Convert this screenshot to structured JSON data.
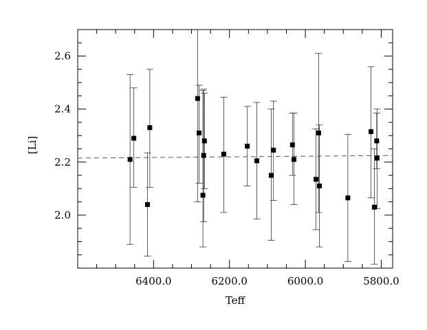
{
  "chart_data": {
    "type": "scatter",
    "title": "",
    "xlabel": "Teff",
    "ylabel": "[Li]",
    "x_reversed": true,
    "xlim": [
      6600,
      5770
    ],
    "ylim": [
      1.8,
      2.7
    ],
    "x_ticks": [
      6400,
      6200,
      6000,
      5800
    ],
    "x_tick_labels": [
      "6400.0",
      "6200.0",
      "6000.0",
      "5800.0"
    ],
    "y_ticks": [
      2.0,
      2.2,
      2.4,
      2.6
    ],
    "y_tick_labels": [
      "2.0",
      "2.2",
      "2.4",
      "2.6"
    ],
    "x_minor_step": 50,
    "y_minor_step": 0.05,
    "grid": false,
    "legend": "none",
    "reference_line": {
      "style": "dashed",
      "y_at_xmin": 2.215,
      "y_at_xmax": 2.225
    },
    "points": [
      {
        "x": 6462,
        "y": 2.21,
        "err_low": 1.89,
        "err_high": 2.53
      },
      {
        "x": 6452,
        "y": 2.29,
        "err_low": 2.105,
        "err_high": 2.48
      },
      {
        "x": 6416,
        "y": 2.04,
        "err_low": 1.845,
        "err_high": 2.235
      },
      {
        "x": 6410,
        "y": 2.33,
        "err_low": 2.105,
        "err_high": 2.55
      },
      {
        "x": 6284,
        "y": 2.44,
        "err_low": 2.05,
        "err_high": 2.7
      },
      {
        "x": 6280,
        "y": 2.31,
        "err_low": 2.12,
        "err_high": 2.49
      },
      {
        "x": 6270,
        "y": 2.075,
        "err_low": 1.88,
        "err_high": 2.47
      },
      {
        "x": 6268,
        "y": 2.225,
        "err_low": 1.975,
        "err_high": 2.475
      },
      {
        "x": 6266,
        "y": 2.28,
        "err_low": 2.1,
        "err_high": 2.46
      },
      {
        "x": 6215,
        "y": 2.23,
        "err_low": 2.01,
        "err_high": 2.445
      },
      {
        "x": 6153,
        "y": 2.26,
        "err_low": 2.11,
        "err_high": 2.41
      },
      {
        "x": 6128,
        "y": 2.205,
        "err_low": 1.985,
        "err_high": 2.425
      },
      {
        "x": 6090,
        "y": 2.15,
        "err_low": 1.905,
        "err_high": 2.4
      },
      {
        "x": 6084,
        "y": 2.245,
        "err_low": 2.055,
        "err_high": 2.43
      },
      {
        "x": 6034,
        "y": 2.265,
        "err_low": 2.15,
        "err_high": 2.385
      },
      {
        "x": 6030,
        "y": 2.21,
        "err_low": 2.04,
        "err_high": 2.385
      },
      {
        "x": 5972,
        "y": 2.135,
        "err_low": 1.945,
        "err_high": 2.325
      },
      {
        "x": 5965,
        "y": 2.31,
        "err_low": 2.01,
        "err_high": 2.61
      },
      {
        "x": 5963,
        "y": 2.11,
        "err_low": 1.88,
        "err_high": 2.34
      },
      {
        "x": 5888,
        "y": 2.065,
        "err_low": 1.825,
        "err_high": 2.305
      },
      {
        "x": 5827,
        "y": 2.315,
        "err_low": 2.065,
        "err_high": 2.56
      },
      {
        "x": 5818,
        "y": 2.03,
        "err_low": 1.815,
        "err_high": 2.25
      },
      {
        "x": 5812,
        "y": 2.28,
        "err_low": 2.175,
        "err_high": 2.385
      },
      {
        "x": 5811,
        "y": 2.215,
        "err_low": 2.025,
        "err_high": 2.4
      }
    ]
  }
}
